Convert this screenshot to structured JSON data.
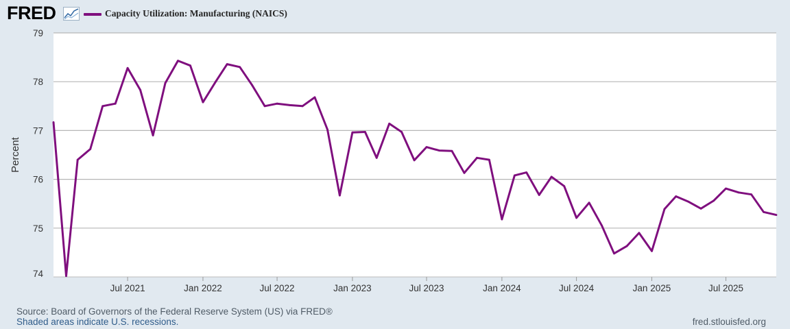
{
  "header": {
    "logo_text": "FRED",
    "logo_icon": "line-chart-icon"
  },
  "colors": {
    "series": "#7f0f7e",
    "background": "#e1e9f0",
    "plot_background": "#ffffff",
    "grid": "#b6b6b6"
  },
  "chart_data": {
    "type": "line",
    "ylabel": "Percent",
    "ylim": [
      74,
      79
    ],
    "yticks": [
      74,
      75,
      76,
      77,
      78,
      79
    ],
    "xlim": [
      "2021-01-01",
      "2025-11-01"
    ],
    "xticks": [
      {
        "date": "2021-07-01",
        "label": "Jul 2021"
      },
      {
        "date": "2022-01-01",
        "label": "Jan 2022"
      },
      {
        "date": "2022-07-01",
        "label": "Jul 2022"
      },
      {
        "date": "2023-01-01",
        "label": "Jan 2023"
      },
      {
        "date": "2023-07-01",
        "label": "Jul 2023"
      },
      {
        "date": "2024-01-01",
        "label": "Jan 2024"
      },
      {
        "date": "2024-07-01",
        "label": "Jul 2024"
      },
      {
        "date": "2025-01-01",
        "label": "Jan 2025"
      },
      {
        "date": "2025-07-01",
        "label": "Jul 2025"
      }
    ],
    "grid": true,
    "legend_position": "top-left",
    "series": [
      {
        "name": "Capacity Utilization: Manufacturing (NAICS)",
        "x": [
          "2021-01",
          "2021-02",
          "2021-03",
          "2021-04",
          "2021-05",
          "2021-06",
          "2021-07",
          "2021-08",
          "2021-09",
          "2021-10",
          "2021-11",
          "2021-12",
          "2022-01",
          "2022-02",
          "2022-03",
          "2022-04",
          "2022-05",
          "2022-06",
          "2022-07",
          "2022-08",
          "2022-09",
          "2022-10",
          "2022-11",
          "2022-12",
          "2023-01",
          "2023-02",
          "2023-03",
          "2023-04",
          "2023-05",
          "2023-06",
          "2023-07",
          "2023-08",
          "2023-09",
          "2023-10",
          "2023-11",
          "2023-12",
          "2024-01",
          "2024-02",
          "2024-03",
          "2024-04",
          "2024-05",
          "2024-06",
          "2024-07",
          "2024-08",
          "2024-09",
          "2024-10",
          "2024-11",
          "2024-12",
          "2025-01",
          "2025-02",
          "2025-03",
          "2025-04",
          "2025-05",
          "2025-06",
          "2025-07",
          "2025-08",
          "2025-09",
          "2025-10",
          "2025-11"
        ],
        "values": [
          77.17,
          74.02,
          76.4,
          76.62,
          77.5,
          77.55,
          78.28,
          77.83,
          76.9,
          77.97,
          78.43,
          78.33,
          77.58,
          78.0,
          78.36,
          78.3,
          77.93,
          77.5,
          77.55,
          77.52,
          77.5,
          77.68,
          77.02,
          75.67,
          76.96,
          76.97,
          76.44,
          77.14,
          76.97,
          76.39,
          76.66,
          76.59,
          76.58,
          76.13,
          76.44,
          76.4,
          75.18,
          76.08,
          76.14,
          75.68,
          76.05,
          75.86,
          75.21,
          75.52,
          75.05,
          74.48,
          74.63,
          74.9,
          74.53,
          75.39,
          75.65,
          75.54,
          75.4,
          75.56,
          75.81,
          75.73,
          75.69,
          75.33,
          75.27
        ]
      }
    ]
  },
  "footer": {
    "source": "Source: Board of Governors of the Federal Reserve System (US) via FRED®",
    "shaded": "Shaded areas indicate U.S. recessions.",
    "site": "fred.stlouisfed.org"
  }
}
